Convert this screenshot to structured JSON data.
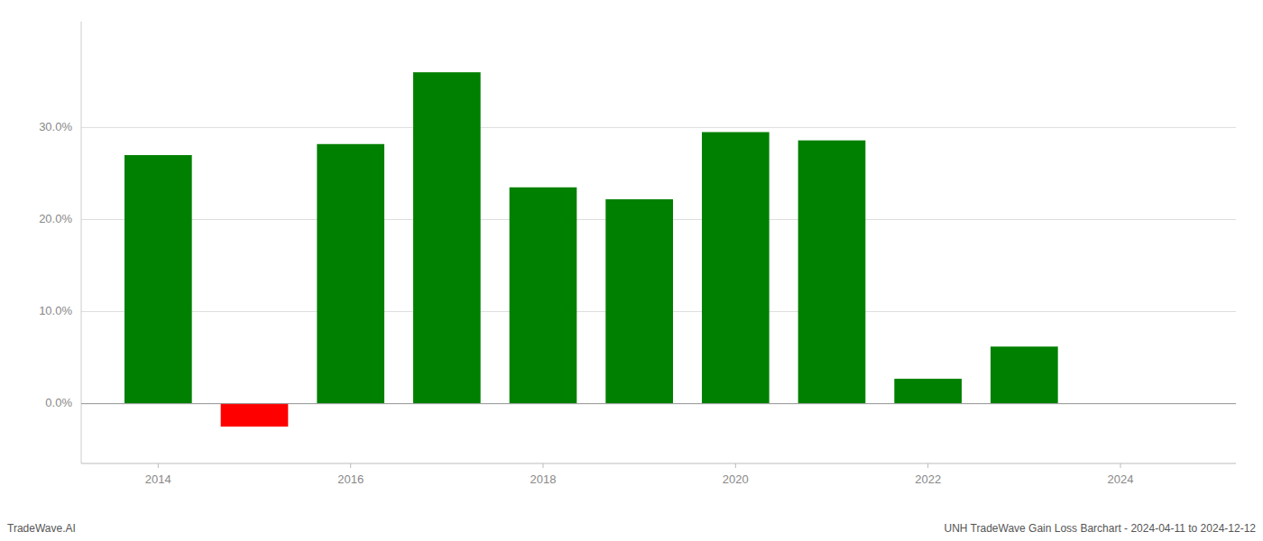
{
  "chart_data": {
    "type": "bar",
    "x": [
      2014,
      2015,
      2016,
      2017,
      2018,
      2019,
      2020,
      2021,
      2022,
      2023
    ],
    "values": [
      0.27,
      -0.025,
      0.282,
      0.36,
      0.235,
      0.222,
      0.295,
      0.286,
      0.027,
      0.062
    ],
    "colors": [
      "#008000",
      "#ff0000",
      "#008000",
      "#008000",
      "#008000",
      "#008000",
      "#008000",
      "#008000",
      "#008000",
      "#008000"
    ],
    "ylim": [
      -0.065,
      0.415
    ],
    "yticks": [
      {
        "value": 0.0,
        "label": "0.0%"
      },
      {
        "value": 0.1,
        "label": "10.0%"
      },
      {
        "value": 0.2,
        "label": "20.0%"
      },
      {
        "value": 0.3,
        "label": "30.0%"
      }
    ],
    "xlim": [
      2013.2,
      2025.2
    ],
    "xticks": [
      2014,
      2016,
      2018,
      2020,
      2022,
      2024
    ],
    "grid": true,
    "annotations": [
      "TradeWave.AI",
      "UNH TradeWave Gain Loss Barchart - 2024-04-11 to 2024-12-12"
    ]
  }
}
